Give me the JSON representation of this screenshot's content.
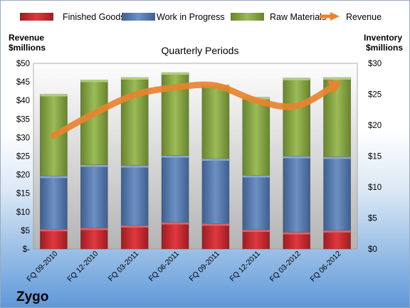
{
  "chart_data": {
    "type": "bar",
    "subtype": "stacked-bar-with-line",
    "title": "Quarterly Periods",
    "company": "Zygo",
    "left_axis_label": [
      "Revenue",
      "$millions"
    ],
    "right_axis_label": [
      "Inventory",
      "$millions"
    ],
    "left_axis": {
      "min": 0,
      "max": 50,
      "step": 5,
      "ticks": [
        "$-",
        "$5",
        "$10",
        "$15",
        "$20",
        "$25",
        "$30",
        "$35",
        "$40",
        "$45",
        "$50"
      ]
    },
    "right_axis": {
      "min": 0,
      "max": 30,
      "step": 5,
      "ticks": [
        "$0",
        "$5",
        "$10",
        "$15",
        "$20",
        "$25",
        "$30"
      ]
    },
    "categories": [
      "FQ 09-2010",
      "FQ 12-2010",
      "FQ 03-2011",
      "FQ 06-2011",
      "FQ 09-2011",
      "FQ 12-2011",
      "FQ 03-2012",
      "FQ 06-2012"
    ],
    "series": [
      {
        "name": "Finished Goods",
        "axis": "right",
        "color": "#c0242a",
        "values": [
          3.2,
          3.4,
          3.8,
          4.3,
          4.1,
          3.1,
          2.7,
          3.0
        ]
      },
      {
        "name": "Work in Progress",
        "axis": "right",
        "color": "#4f74a9",
        "values": [
          8.6,
          10.2,
          9.7,
          10.8,
          10.5,
          8.8,
          12.3,
          11.9
        ]
      },
      {
        "name": "Raw Materials",
        "axis": "right",
        "color": "#7f9f3a",
        "values": [
          13.2,
          13.7,
          14.2,
          13.4,
          11.9,
          12.6,
          12.6,
          12.8
        ]
      },
      {
        "name": "Revenue",
        "axis": "left",
        "color": "#e8832f",
        "type": "line",
        "values": [
          30.5,
          36.5,
          41.5,
          43.5,
          44.0,
          40.0,
          38.5,
          44.5
        ]
      }
    ],
    "grid": false,
    "legend_position": "top"
  }
}
